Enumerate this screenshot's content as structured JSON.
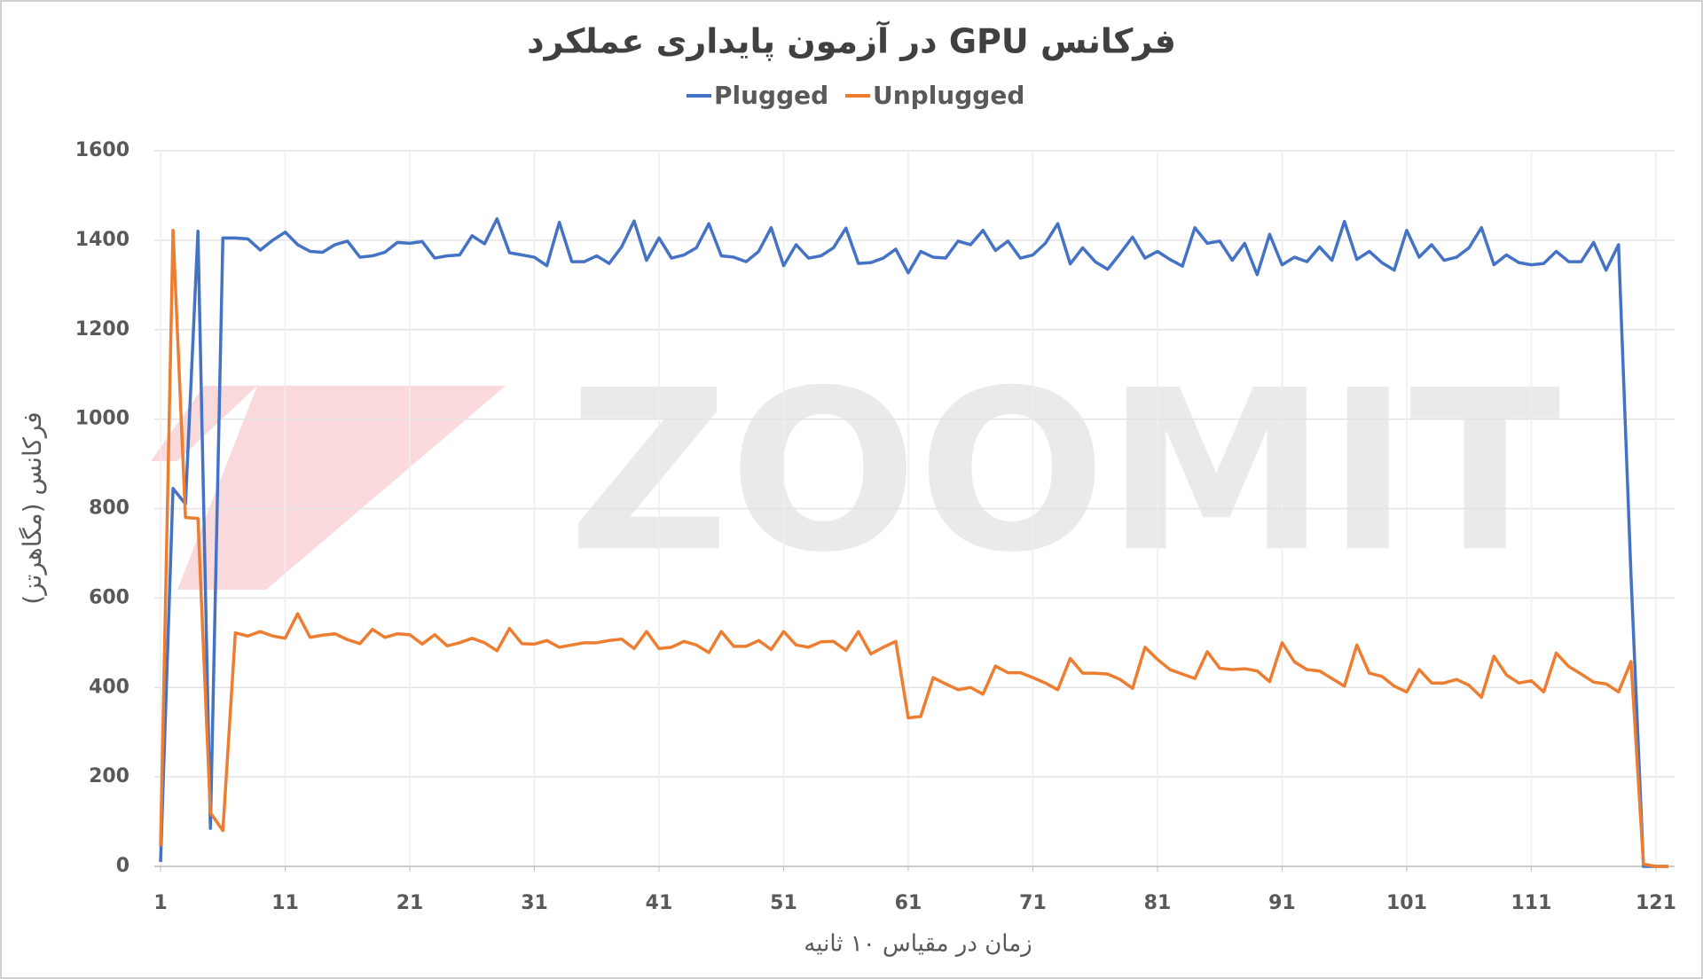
{
  "chart_data": {
    "type": "line",
    "title": "فرکانس GPU در آزمون پایداری عملکرد",
    "watermark": "ZOOMIT",
    "x_label": "زمان در مقیاس ۱۰ ثانیه",
    "y_label": "فرکانس (مگاهرتز)",
    "x": [
      1,
      2,
      3,
      4,
      5,
      6,
      7,
      8,
      9,
      10,
      11,
      12,
      13,
      14,
      15,
      16,
      17,
      18,
      19,
      20,
      21,
      22,
      23,
      24,
      25,
      26,
      27,
      28,
      29,
      30,
      31,
      32,
      33,
      34,
      35,
      36,
      37,
      38,
      39,
      40,
      41,
      42,
      43,
      44,
      45,
      46,
      47,
      48,
      49,
      50,
      51,
      52,
      53,
      54,
      55,
      56,
      57,
      58,
      59,
      60,
      61,
      62,
      63,
      64,
      65,
      66,
      67,
      68,
      69,
      70,
      71,
      72,
      73,
      74,
      75,
      76,
      77,
      78,
      79,
      80,
      81,
      82,
      83,
      84,
      85,
      86,
      87,
      88,
      89,
      90,
      91,
      92,
      93,
      94,
      95,
      96,
      97,
      98,
      99,
      100,
      101,
      102,
      103,
      104,
      105,
      106,
      107,
      108,
      109,
      110,
      111,
      112,
      113,
      114,
      115,
      116,
      117,
      118,
      119,
      120,
      121,
      122
    ],
    "series": [
      {
        "name": "Plugged",
        "color": "#4472c4",
        "values": [
          10,
          845,
          810,
          1420,
          85,
          1405,
          1405,
          1403,
          1378,
          1400,
          1418,
          1390,
          1375,
          1373,
          1390,
          1398,
          1362,
          1365,
          1373,
          1395,
          1393,
          1397,
          1360,
          1365,
          1367,
          1410,
          1392,
          1448,
          1372,
          1367,
          1362,
          1343,
          1440,
          1352,
          1352,
          1365,
          1348,
          1385,
          1443,
          1355,
          1405,
          1360,
          1367,
          1383,
          1437,
          1365,
          1362,
          1352,
          1375,
          1428,
          1343,
          1390,
          1360,
          1365,
          1383,
          1427,
          1348,
          1350,
          1360,
          1380,
          1327,
          1375,
          1362,
          1360,
          1398,
          1390,
          1422,
          1377,
          1398,
          1360,
          1367,
          1393,
          1437,
          1347,
          1383,
          1352,
          1335,
          1370,
          1407,
          1360,
          1375,
          1357,
          1342,
          1428,
          1393,
          1398,
          1355,
          1393,
          1323,
          1413,
          1345,
          1362,
          1352,
          1385,
          1355,
          1442,
          1357,
          1375,
          1350,
          1333,
          1422,
          1362,
          1390,
          1355,
          1362,
          1383,
          1428,
          1345,
          1367,
          1350,
          1345,
          1348,
          1375,
          1352,
          1352,
          1395,
          1333,
          1390,
          650,
          0,
          0,
          0
        ]
      },
      {
        "name": "Unplugged",
        "color": "#ed7d31",
        "values": [
          45,
          1422,
          780,
          778,
          120,
          80,
          522,
          515,
          525,
          515,
          510,
          565,
          512,
          517,
          520,
          507,
          498,
          530,
          512,
          520,
          518,
          497,
          518,
          493,
          500,
          510,
          500,
          482,
          532,
          498,
          497,
          505,
          490,
          495,
          500,
          500,
          505,
          508,
          487,
          525,
          487,
          490,
          503,
          495,
          478,
          525,
          492,
          492,
          505,
          485,
          525,
          495,
          490,
          502,
          503,
          483,
          525,
          475,
          490,
          503,
          332,
          335,
          422,
          408,
          395,
          400,
          385,
          448,
          433,
          433,
          422,
          410,
          395,
          465,
          432,
          432,
          430,
          418,
          398,
          490,
          463,
          440,
          430,
          420,
          480,
          443,
          440,
          442,
          437,
          413,
          500,
          457,
          440,
          437,
          420,
          403,
          495,
          432,
          425,
          403,
          390,
          440,
          410,
          410,
          418,
          405,
          378,
          470,
          428,
          410,
          415,
          390,
          477,
          447,
          430,
          412,
          408,
          390,
          458,
          5,
          0,
          0
        ]
      }
    ],
    "xlim": [
      0.5,
      122.5
    ],
    "xticks": [
      1,
      11,
      21,
      31,
      41,
      51,
      61,
      71,
      81,
      91,
      101,
      111,
      121
    ],
    "ylim": [
      0,
      1600
    ],
    "yticks": [
      0,
      200,
      400,
      600,
      800,
      1000,
      1200,
      1400,
      1600
    ],
    "grid": true,
    "legend": "top"
  }
}
